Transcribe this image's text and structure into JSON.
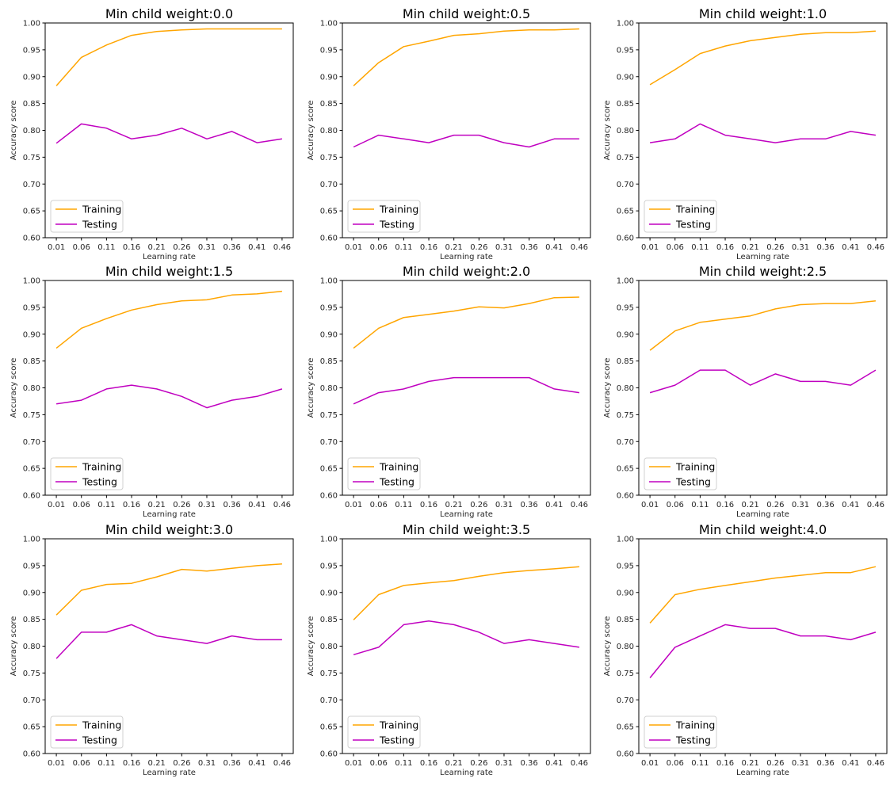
{
  "chart_data": {
    "type": "line",
    "layout": "3x3 grid of subplots",
    "x": [
      "0.01",
      "0.06",
      "0.11",
      "0.16",
      "0.21",
      "0.26",
      "0.31",
      "0.36",
      "0.41",
      "0.46"
    ],
    "xlabel": "Learning rate",
    "ylabel": "Accuracy score",
    "ylim": [
      0.6,
      1.0
    ],
    "yticks": [
      "0.60",
      "0.65",
      "0.70",
      "0.75",
      "0.80",
      "0.85",
      "0.90",
      "0.95",
      "1.00"
    ],
    "grid": false,
    "legend_position": "lower-left",
    "series_styles": [
      {
        "name": "Training",
        "color": "#FFA500"
      },
      {
        "name": "Testing",
        "color": "#C000C0"
      }
    ],
    "subplots": [
      {
        "title": "Min child weight:0.0",
        "series": [
          {
            "name": "Training",
            "values": [
              0.883,
              0.936,
              0.959,
              0.977,
              0.984,
              0.987,
              0.989,
              0.989,
              0.989,
              0.989
            ]
          },
          {
            "name": "Testing",
            "values": [
              0.776,
              0.812,
              0.804,
              0.784,
              0.791,
              0.804,
              0.784,
              0.798,
              0.777,
              0.784
            ]
          }
        ]
      },
      {
        "title": "Min child weight:0.5",
        "series": [
          {
            "name": "Training",
            "values": [
              0.883,
              0.926,
              0.956,
              0.966,
              0.977,
              0.98,
              0.985,
              0.987,
              0.987,
              0.989
            ]
          },
          {
            "name": "Testing",
            "values": [
              0.769,
              0.791,
              0.784,
              0.777,
              0.791,
              0.791,
              0.777,
              0.769,
              0.784,
              0.784
            ]
          }
        ]
      },
      {
        "title": "Min child weight:1.0",
        "series": [
          {
            "name": "Training",
            "values": [
              0.885,
              0.913,
              0.943,
              0.957,
              0.967,
              0.973,
              0.979,
              0.982,
              0.982,
              0.985
            ]
          },
          {
            "name": "Testing",
            "values": [
              0.777,
              0.784,
              0.812,
              0.791,
              0.784,
              0.777,
              0.784,
              0.784,
              0.798,
              0.791
            ]
          }
        ]
      },
      {
        "title": "Min child weight:1.5",
        "series": [
          {
            "name": "Training",
            "values": [
              0.874,
              0.911,
              0.929,
              0.945,
              0.955,
              0.962,
              0.964,
              0.973,
              0.975,
              0.98
            ]
          },
          {
            "name": "Testing",
            "values": [
              0.77,
              0.777,
              0.798,
              0.805,
              0.798,
              0.784,
              0.763,
              0.777,
              0.784,
              0.798
            ]
          }
        ]
      },
      {
        "title": "Min child weight:2.0",
        "series": [
          {
            "name": "Training",
            "values": [
              0.874,
              0.911,
              0.931,
              0.937,
              0.943,
              0.951,
              0.949,
              0.957,
              0.968,
              0.969
            ]
          },
          {
            "name": "Testing",
            "values": [
              0.77,
              0.791,
              0.798,
              0.812,
              0.819,
              0.819,
              0.819,
              0.819,
              0.798,
              0.791
            ]
          }
        ]
      },
      {
        "title": "Min child weight:2.5",
        "series": [
          {
            "name": "Training",
            "values": [
              0.87,
              0.906,
              0.922,
              0.928,
              0.934,
              0.947,
              0.955,
              0.957,
              0.957,
              0.962
            ]
          },
          {
            "name": "Testing",
            "values": [
              0.791,
              0.805,
              0.833,
              0.833,
              0.805,
              0.826,
              0.812,
              0.812,
              0.805,
              0.833
            ]
          }
        ]
      },
      {
        "title": "Min child weight:3.0",
        "series": [
          {
            "name": "Training",
            "values": [
              0.858,
              0.904,
              0.915,
              0.917,
              0.929,
              0.943,
              0.94,
              0.945,
              0.95,
              0.953
            ]
          },
          {
            "name": "Testing",
            "values": [
              0.777,
              0.826,
              0.826,
              0.84,
              0.819,
              0.812,
              0.805,
              0.819,
              0.812,
              0.812
            ]
          }
        ]
      },
      {
        "title": "Min child weight:3.5",
        "series": [
          {
            "name": "Training",
            "values": [
              0.849,
              0.896,
              0.913,
              0.918,
              0.922,
              0.93,
              0.937,
              0.941,
              0.944,
              0.948
            ]
          },
          {
            "name": "Testing",
            "values": [
              0.784,
              0.798,
              0.84,
              0.847,
              0.84,
              0.826,
              0.805,
              0.812,
              0.805,
              0.798
            ]
          }
        ]
      },
      {
        "title": "Min child weight:4.0",
        "series": [
          {
            "name": "Training",
            "values": [
              0.843,
              0.896,
              0.906,
              0.913,
              0.92,
              0.927,
              0.932,
              0.937,
              0.937,
              0.948
            ]
          },
          {
            "name": "Testing",
            "values": [
              0.741,
              0.798,
              0.819,
              0.84,
              0.833,
              0.833,
              0.819,
              0.819,
              0.812,
              0.826
            ]
          }
        ]
      }
    ]
  }
}
